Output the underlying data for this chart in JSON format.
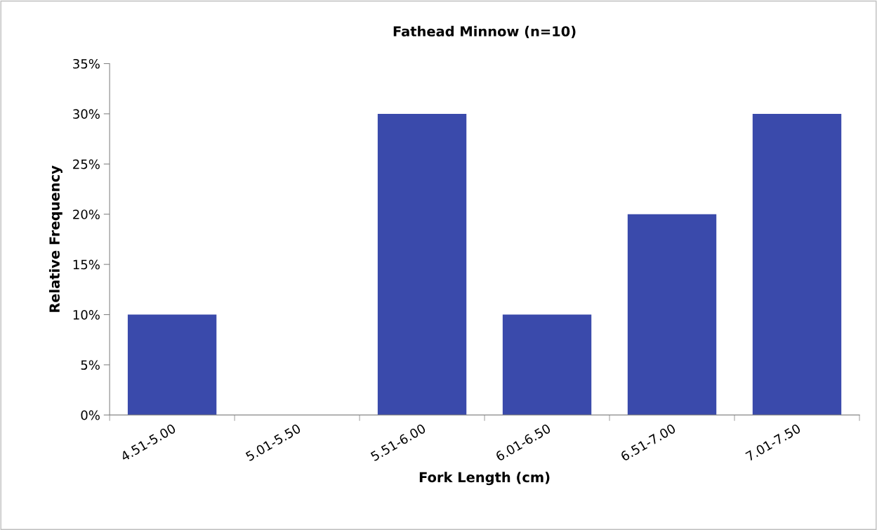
{
  "chart_data": {
    "type": "bar",
    "title": "Fathead Minnow (n=10)",
    "xlabel": "Fork Length (cm)",
    "ylabel": "Relative Frequency",
    "categories": [
      "4.51-5.00",
      "5.01-5.50",
      "5.51-6.00",
      "6.01-6.50",
      "6.51-7.00",
      "7.01-7.50"
    ],
    "values": [
      10,
      0,
      30,
      10,
      20,
      30
    ],
    "color": "#3a4aab",
    "ylim": [
      0,
      35
    ],
    "yticks": [
      {
        "value": 0,
        "label": "0%"
      },
      {
        "value": 5,
        "label": "5%"
      },
      {
        "value": 10,
        "label": "10%"
      },
      {
        "value": 15,
        "label": "15%"
      },
      {
        "value": 20,
        "label": "20%"
      },
      {
        "value": 25,
        "label": "25%"
      },
      {
        "value": 30,
        "label": "30%"
      },
      {
        "value": 35,
        "label": "35%"
      }
    ],
    "grid": false,
    "legend": false
  }
}
